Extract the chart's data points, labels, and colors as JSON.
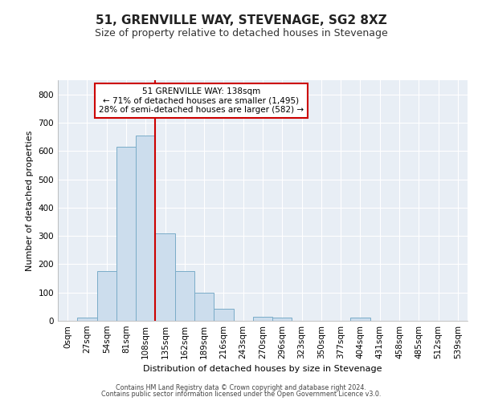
{
  "title": "51, GRENVILLE WAY, STEVENAGE, SG2 8XZ",
  "subtitle": "Size of property relative to detached houses in Stevenage",
  "xlabel": "Distribution of detached houses by size in Stevenage",
  "ylabel": "Number of detached properties",
  "bar_labels": [
    "0sqm",
    "27sqm",
    "54sqm",
    "81sqm",
    "108sqm",
    "135sqm",
    "162sqm",
    "189sqm",
    "216sqm",
    "243sqm",
    "270sqm",
    "296sqm",
    "323sqm",
    "350sqm",
    "377sqm",
    "404sqm",
    "431sqm",
    "458sqm",
    "485sqm",
    "512sqm",
    "539sqm"
  ],
  "bar_values": [
    0,
    10,
    175,
    615,
    655,
    310,
    175,
    100,
    42,
    0,
    15,
    10,
    0,
    0,
    0,
    10,
    0,
    0,
    0,
    0,
    0
  ],
  "bar_color": "#ccdded",
  "bar_edge_color": "#7aacc8",
  "annotation_line1": "51 GRENVILLE WAY: 138sqm",
  "annotation_line2": "← 71% of detached houses are smaller (1,495)",
  "annotation_line3": "28% of semi-detached houses are larger (582) →",
  "vline_color": "#cc0000",
  "annotation_box_edge": "#cc0000",
  "ylim": [
    0,
    850
  ],
  "yticks": [
    0,
    100,
    200,
    300,
    400,
    500,
    600,
    700,
    800
  ],
  "footer1": "Contains HM Land Registry data © Crown copyright and database right 2024.",
  "footer2": "Contains public sector information licensed under the Open Government Licence v3.0.",
  "plot_bg_color": "#e8eef5",
  "fig_bg_color": "#ffffff",
  "grid_color": "#ffffff",
  "title_fontsize": 11,
  "subtitle_fontsize": 9,
  "axis_label_fontsize": 8,
  "tick_fontsize": 7.5
}
